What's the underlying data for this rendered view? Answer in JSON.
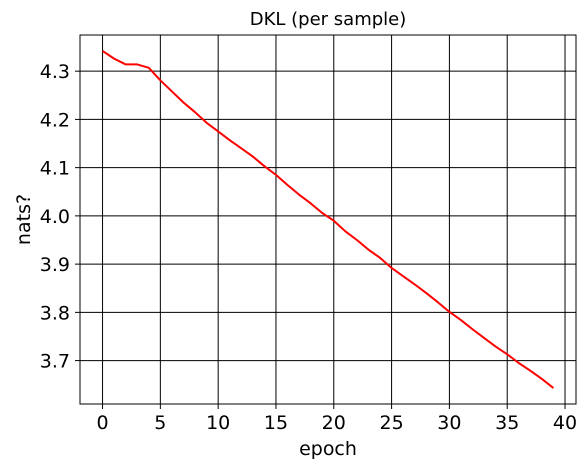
{
  "chart_data": {
    "type": "line",
    "title": "DKL (per sample)",
    "xlabel": "epoch",
    "ylabel": "nats?",
    "xlim": [
      -1.95,
      40.95
    ],
    "ylim": [
      3.61,
      4.375
    ],
    "xticks": [
      0,
      5,
      10,
      15,
      20,
      25,
      30,
      35,
      40
    ],
    "yticks": [
      3.7,
      3.8,
      3.9,
      4.0,
      4.1,
      4.2,
      4.3
    ],
    "grid": true,
    "series": [
      {
        "color": "#ff0000",
        "x": [
          0,
          1,
          2,
          3,
          4,
          5,
          6,
          7,
          8,
          9,
          10,
          11,
          12,
          13,
          14,
          15,
          16,
          17,
          18,
          19,
          20,
          21,
          22,
          23,
          24,
          25,
          26,
          27,
          28,
          29,
          30,
          31,
          32,
          33,
          34,
          35,
          36,
          37,
          38,
          39
        ],
        "y": [
          4.342,
          4.326,
          4.314,
          4.314,
          4.307,
          4.281,
          4.258,
          4.235,
          4.215,
          4.193,
          4.175,
          4.157,
          4.14,
          4.123,
          4.103,
          4.085,
          4.064,
          4.044,
          4.026,
          4.006,
          3.99,
          3.968,
          3.95,
          3.93,
          3.913,
          3.892,
          3.875,
          3.858,
          3.84,
          3.821,
          3.801,
          3.784,
          3.765,
          3.747,
          3.729,
          3.713,
          3.695,
          3.679,
          3.662,
          3.643
        ]
      }
    ]
  },
  "colors": {
    "line": "#ff0000",
    "grid": "#000000",
    "axes": "#000000",
    "background": "#ffffff"
  }
}
